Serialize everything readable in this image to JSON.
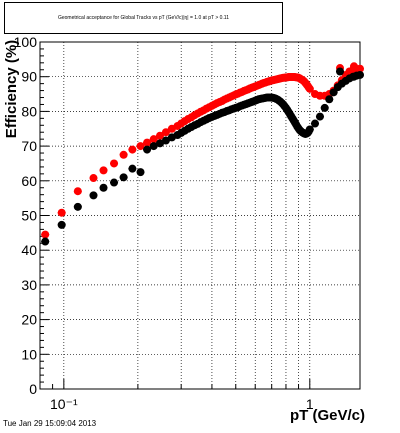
{
  "title": "Geometrical acceptance for Global Tracks vs pT (GeV/c)|η| = 1.0 at pT > 0.11",
  "timestamp": "Tue Jan 29 15:09:04 2013",
  "chart_data": {
    "type": "scatter",
    "title": "Geometrical acceptance for Global Tracks vs pT (GeV/c)|η| = 1.0 at pT > 0.11",
    "xlabel": "pT (GeV/c)",
    "ylabel": "Efficiency (%)",
    "xscale": "log",
    "xlim": [
      0.08,
      1.6
    ],
    "ylim": [
      0,
      100
    ],
    "x_tick_labels": [
      "10⁻¹",
      "1"
    ],
    "y_tick_labels": [
      "0",
      "10",
      "20",
      "30",
      "40",
      "50",
      "60",
      "70",
      "80",
      "90",
      "100"
    ],
    "grid": true,
    "legend": "none",
    "series": [
      {
        "color": "#ff0000",
        "x": [
          0.084,
          0.098,
          0.114,
          0.132,
          0.145,
          0.16,
          0.175,
          0.19,
          0.205,
          0.218,
          0.232,
          0.246,
          0.26,
          0.275,
          0.29,
          0.3,
          0.31,
          0.32,
          0.33,
          0.34,
          0.35,
          0.36,
          0.37,
          0.38,
          0.39,
          0.4,
          0.41,
          0.42,
          0.43,
          0.44,
          0.45,
          0.46,
          0.47,
          0.48,
          0.49,
          0.5,
          0.51,
          0.52,
          0.53,
          0.54,
          0.55,
          0.56,
          0.57,
          0.58,
          0.59,
          0.6,
          0.61,
          0.62,
          0.63,
          0.64,
          0.65,
          0.66,
          0.67,
          0.68,
          0.69,
          0.7,
          0.71,
          0.72,
          0.73,
          0.74,
          0.75,
          0.76,
          0.77,
          0.78,
          0.79,
          0.8,
          0.81,
          0.82,
          0.83,
          0.84,
          0.85,
          0.86,
          0.87,
          0.88,
          0.89,
          0.9,
          0.91,
          0.92,
          0.93,
          0.94,
          0.95,
          0.96,
          0.97,
          0.98,
          0.99,
          1.0,
          1.05,
          1.1,
          1.15,
          1.2,
          1.25,
          1.3,
          1.35,
          1.4,
          1.45,
          1.5,
          1.55,
          1.6
        ],
        "values": [
          44.5,
          50.8,
          57.0,
          60.8,
          63.0,
          65.0,
          67.5,
          69.0,
          70.0,
          71.0,
          72.0,
          73.0,
          74.0,
          75.0,
          75.8,
          76.5,
          77.2,
          77.8,
          78.3,
          78.9,
          79.4,
          79.9,
          80.3,
          80.8,
          81.2,
          81.6,
          82.0,
          82.4,
          82.7,
          83.0,
          83.4,
          83.7,
          84.0,
          84.3,
          84.6,
          84.9,
          85.1,
          85.4,
          85.6,
          85.9,
          86.1,
          86.3,
          86.6,
          86.8,
          87.0,
          87.2,
          87.4,
          87.6,
          87.8,
          88.0,
          88.2,
          88.3,
          88.5,
          88.6,
          88.8,
          88.9,
          89.0,
          89.1,
          89.2,
          89.3,
          89.4,
          89.5,
          89.6,
          89.7,
          89.7,
          89.8,
          89.8,
          89.9,
          89.9,
          89.9,
          89.9,
          89.9,
          89.9,
          89.8,
          89.8,
          89.7,
          89.5,
          89.3,
          89.1,
          88.9,
          88.6,
          88.2,
          87.8,
          87.4,
          86.9,
          86.5,
          85.0,
          84.5,
          84.5,
          85.0,
          86.0,
          87.5,
          89.0,
          90.5,
          91.5,
          92.0,
          92.2,
          92.3
        ],
        "extra_x": [
          2.3,
          2.6
        ],
        "extra_values": [
          92.5,
          93.0
        ]
      },
      {
        "color": "#000000",
        "x": [
          0.084,
          0.098,
          0.114,
          0.132,
          0.145,
          0.16,
          0.175,
          0.19,
          0.205,
          0.218,
          0.232,
          0.246,
          0.26,
          0.275,
          0.29,
          0.3,
          0.31,
          0.32,
          0.33,
          0.34,
          0.35,
          0.36,
          0.37,
          0.38,
          0.39,
          0.4,
          0.41,
          0.42,
          0.43,
          0.44,
          0.45,
          0.46,
          0.47,
          0.48,
          0.49,
          0.5,
          0.51,
          0.52,
          0.53,
          0.54,
          0.55,
          0.56,
          0.57,
          0.58,
          0.59,
          0.6,
          0.61,
          0.62,
          0.63,
          0.64,
          0.65,
          0.66,
          0.67,
          0.68,
          0.69,
          0.7,
          0.71,
          0.72,
          0.73,
          0.74,
          0.75,
          0.76,
          0.77,
          0.78,
          0.79,
          0.8,
          0.81,
          0.82,
          0.83,
          0.84,
          0.85,
          0.86,
          0.87,
          0.88,
          0.89,
          0.9,
          0.91,
          0.92,
          0.93,
          0.94,
          0.95,
          0.96,
          0.97,
          0.98,
          0.99,
          1.0,
          1.05,
          1.1,
          1.15,
          1.2,
          1.25,
          1.3,
          1.35,
          1.4,
          1.45,
          1.5,
          1.55,
          1.6
        ],
        "values": [
          42.5,
          47.3,
          52.5,
          55.8,
          58.0,
          59.5,
          61.0,
          63.5,
          62.5,
          69.0,
          70.0,
          70.8,
          71.6,
          72.5,
          73.2,
          73.8,
          74.4,
          75.0,
          75.5,
          76.0,
          76.4,
          76.9,
          77.3,
          77.7,
          78.1,
          78.4,
          78.7,
          79.0,
          79.3,
          79.6,
          79.8,
          80.1,
          80.3,
          80.6,
          80.8,
          81.0,
          81.2,
          81.5,
          81.7,
          81.9,
          82.1,
          82.3,
          82.5,
          82.7,
          82.9,
          83.1,
          83.3,
          83.5,
          83.6,
          83.7,
          83.8,
          83.9,
          84.0,
          84.0,
          84.0,
          84.0,
          83.9,
          83.8,
          83.6,
          83.4,
          83.1,
          82.8,
          82.4,
          82.0,
          81.5,
          81.0,
          80.4,
          79.8,
          79.2,
          78.6,
          78.0,
          77.4,
          76.8,
          76.2,
          75.6,
          75.1,
          74.6,
          74.3,
          74.0,
          73.8,
          73.6,
          73.5,
          73.6,
          73.8,
          74.2,
          74.8,
          76.5,
          78.5,
          81.0,
          83.5,
          85.5,
          87.0,
          88.0,
          88.8,
          89.5,
          90.0,
          90.3,
          90.5
        ],
        "extra_x": [
          2.3,
          2.6
        ],
        "extra_values": [
          91.5,
          90.0
        ]
      }
    ]
  }
}
